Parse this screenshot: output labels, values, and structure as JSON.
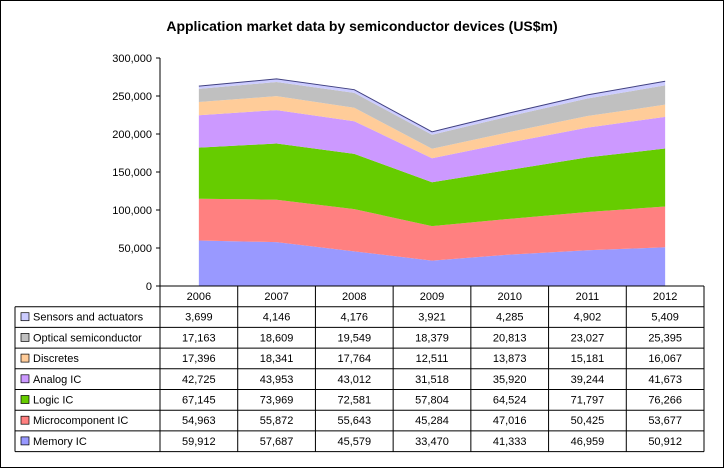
{
  "chart_data": {
    "type": "area",
    "stacked": true,
    "title": "Application market data by semiconductor devices (US$m)",
    "categories": [
      "2006",
      "2007",
      "2008",
      "2009",
      "2010",
      "2011",
      "2012"
    ],
    "ylim": [
      0,
      300000
    ],
    "yticks": [
      "0",
      "50,000",
      "100,000",
      "150,000",
      "200,000",
      "250,000",
      "300,000"
    ],
    "ytick_values": [
      0,
      50000,
      100000,
      150000,
      200000,
      250000,
      300000
    ],
    "legend_placement": "data-table-left",
    "series": [
      {
        "name": "Memory IC",
        "color": "#9999ff",
        "values": [
          59912,
          57687,
          45579,
          33470,
          41333,
          46959,
          50912
        ],
        "labels": [
          "59,912",
          "57,687",
          "45,579",
          "33,470",
          "41,333",
          "46,959",
          "50,912"
        ]
      },
      {
        "name": "Microcomponent IC",
        "color": "#ff8080",
        "values": [
          54963,
          55872,
          55643,
          45284,
          47016,
          50425,
          53677
        ],
        "labels": [
          "54,963",
          "55,872",
          "55,643",
          "45,284",
          "47,016",
          "50,425",
          "53,677"
        ]
      },
      {
        "name": "Logic IC",
        "color": "#66cc00",
        "values": [
          67145,
          73969,
          72581,
          57804,
          64524,
          71797,
          76266
        ],
        "labels": [
          "67,145",
          "73,969",
          "72,581",
          "57,804",
          "64,524",
          "71,797",
          "76,266"
        ]
      },
      {
        "name": "Analog IC",
        "color": "#cc99ff",
        "values": [
          42725,
          43953,
          43012,
          31518,
          35920,
          39244,
          41673
        ],
        "labels": [
          "42,725",
          "43,953",
          "43,012",
          "31,518",
          "35,920",
          "39,244",
          "41,673"
        ]
      },
      {
        "name": "Discretes",
        "color": "#ffcc99",
        "values": [
          17396,
          18341,
          17764,
          12511,
          13873,
          15181,
          16067
        ],
        "labels": [
          "17,396",
          "18,341",
          "17,764",
          "12,511",
          "13,873",
          "15,181",
          "16,067"
        ]
      },
      {
        "name": "Optical semiconductor",
        "color": "#c0c0c0",
        "values": [
          17163,
          18609,
          19549,
          18379,
          20813,
          23027,
          25395
        ],
        "labels": [
          "17,163",
          "18,609",
          "19,549",
          "18,379",
          "20,813",
          "23,027",
          "25,395"
        ]
      },
      {
        "name": "Sensors and actuators",
        "color": "#ccccff",
        "values": [
          3699,
          4146,
          4176,
          3921,
          4285,
          4902,
          5409
        ],
        "labels": [
          "3,699",
          "4,146",
          "4,176",
          "3,921",
          "4,285",
          "4,902",
          "5,409"
        ]
      }
    ]
  }
}
